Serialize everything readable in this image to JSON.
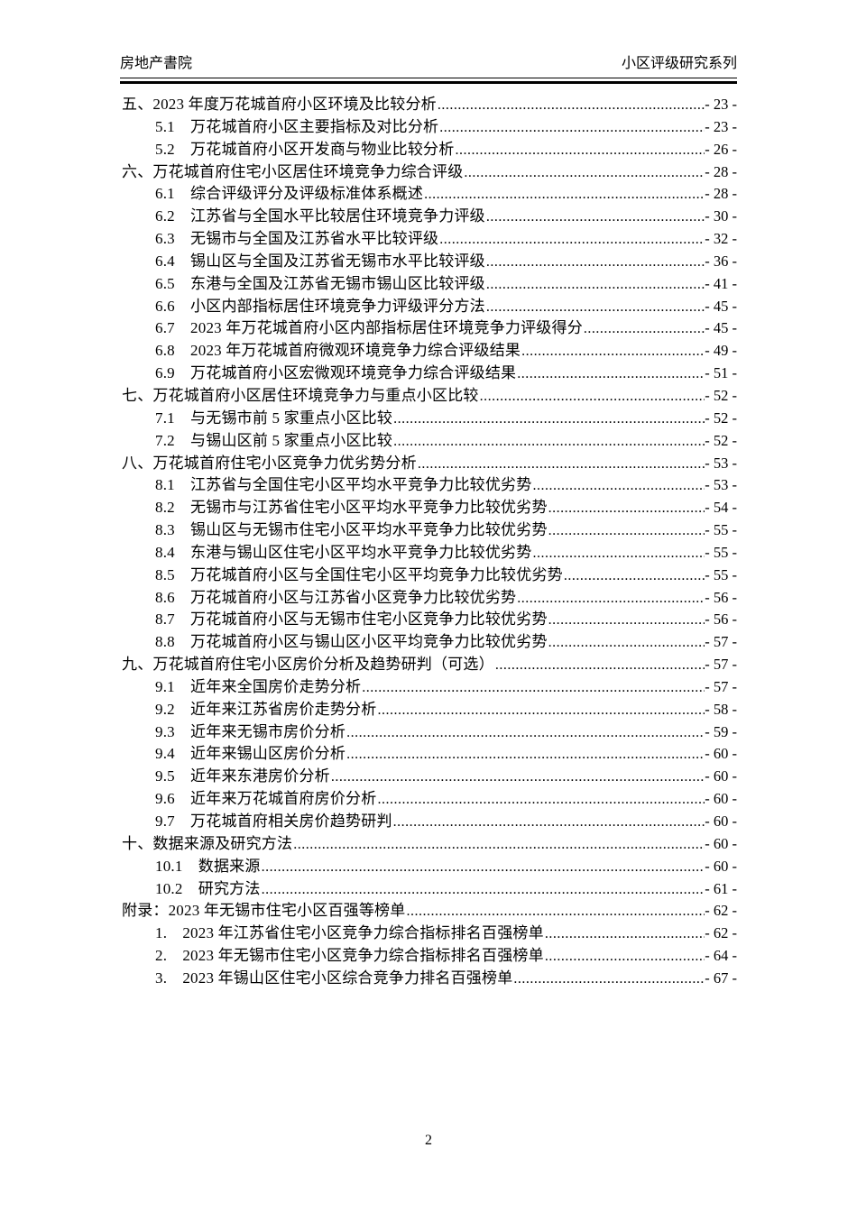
{
  "header": {
    "left": "房地产書院",
    "right": "小区评级研究系列"
  },
  "toc_entries": [
    {
      "level": 1,
      "label": "五、2023 年度万花城首府小区环境及比较分析",
      "page": "- 23 -"
    },
    {
      "level": 2,
      "label": "5.1　万花城首府小区主要指标及对比分析",
      "page": "- 23 -"
    },
    {
      "level": 2,
      "label": "5.2　万花城首府小区开发商与物业比较分析",
      "page": "- 26 -"
    },
    {
      "level": 1,
      "label": "六、万花城首府住宅小区居住环境竞争力综合评级",
      "page": "- 28 -"
    },
    {
      "level": 2,
      "label": "6.1　综合评级评分及评级标准体系概述",
      "page": "- 28 -"
    },
    {
      "level": 2,
      "label": "6.2　江苏省与全国水平比较居住环境竞争力评级",
      "page": "- 30 -"
    },
    {
      "level": 2,
      "label": "6.3　无锡市与全国及江苏省水平比较评级",
      "page": "- 32 -"
    },
    {
      "level": 2,
      "label": "6.4　锡山区与全国及江苏省无锡市水平比较评级",
      "page": "- 36 -"
    },
    {
      "level": 2,
      "label": "6.5　东港与全国及江苏省无锡市锡山区比较评级",
      "page": "- 41 -"
    },
    {
      "level": 2,
      "label": "6.6　小区内部指标居住环境竞争力评级评分方法",
      "page": "- 45 -"
    },
    {
      "level": 2,
      "label": "6.7　2023 年万花城首府小区内部指标居住环境竞争力评级得分",
      "page": "- 45 -"
    },
    {
      "level": 2,
      "label": "6.8　2023 年万花城首府微观环境竞争力综合评级结果",
      "page": "- 49 -"
    },
    {
      "level": 2,
      "label": "6.9　万花城首府小区宏微观环境竞争力综合评级结果",
      "page": "- 51 -"
    },
    {
      "level": 1,
      "label": "七、万花城首府小区居住环境竞争力与重点小区比较",
      "page": "- 52 -"
    },
    {
      "level": 2,
      "label": "7.1　与无锡市前 5 家重点小区比较",
      "page": "- 52 -"
    },
    {
      "level": 2,
      "label": "7.2　与锡山区前 5 家重点小区比较",
      "page": "- 52 -"
    },
    {
      "level": 1,
      "label": "八、万花城首府住宅小区竞争力优劣势分析",
      "page": "- 53 -"
    },
    {
      "level": 2,
      "label": "8.1　江苏省与全国住宅小区平均水平竞争力比较优劣势",
      "page": "- 53 -"
    },
    {
      "level": 2,
      "label": "8.2　无锡市与江苏省住宅小区平均水平竞争力比较优劣势",
      "page": "- 54 -"
    },
    {
      "level": 2,
      "label": "8.3　锡山区与无锡市住宅小区平均水平竞争力比较优劣势",
      "page": "- 55 -"
    },
    {
      "level": 2,
      "label": "8.4　东港与锡山区住宅小区平均水平竞争力比较优劣势",
      "page": "- 55 -"
    },
    {
      "level": 2,
      "label": "8.5　万花城首府小区与全国住宅小区平均竞争力比较优劣势",
      "page": "- 55 -"
    },
    {
      "level": 2,
      "label": "8.6　万花城首府小区与江苏省小区竞争力比较优劣势",
      "page": "- 56 -"
    },
    {
      "level": 2,
      "label": "8.7　万花城首府小区与无锡市住宅小区竞争力比较优劣势",
      "page": "- 56 -"
    },
    {
      "level": 2,
      "label": "8.8　万花城首府小区与锡山区小区平均竞争力比较优劣势",
      "page": "- 57 -"
    },
    {
      "level": 1,
      "label": "九、万花城首府住宅小区房价分析及趋势研判（可选）",
      "page": "- 57 -"
    },
    {
      "level": 2,
      "label": "9.1　近年来全国房价走势分析",
      "page": "- 57 -"
    },
    {
      "level": 2,
      "label": "9.2　近年来江苏省房价走势分析",
      "page": "- 58 -"
    },
    {
      "level": 2,
      "label": "9.3　近年来无锡市房价分析",
      "page": "- 59 -"
    },
    {
      "level": 2,
      "label": "9.4　近年来锡山区房价分析",
      "page": "- 60 -"
    },
    {
      "level": 2,
      "label": "9.5　近年来东港房价分析",
      "page": "- 60 -"
    },
    {
      "level": 2,
      "label": "9.6　近年来万花城首府房价分析",
      "page": "- 60 -"
    },
    {
      "level": 2,
      "label": "9.7　万花城首府相关房价趋势研判",
      "page": "- 60 -"
    },
    {
      "level": 1,
      "label": "十、数据来源及研究方法",
      "page": "- 60 -"
    },
    {
      "level": 2,
      "label": "10.1　数据来源",
      "page": "- 60 -"
    },
    {
      "level": 2,
      "label": "10.2　研究方法",
      "page": "- 61 -"
    },
    {
      "level": 1,
      "label": "附录：2023 年无锡市住宅小区百强等榜单",
      "page": "- 62 -"
    },
    {
      "level": 2,
      "label": "1.　2023 年江苏省住宅小区竞争力综合指标排名百强榜单",
      "page": "- 62 -"
    },
    {
      "level": 2,
      "label": "2.　2023 年无锡市住宅小区竞争力综合指标排名百强榜单",
      "page": "- 64 -"
    },
    {
      "level": 2,
      "label": "3.　2023 年锡山区住宅小区综合竞争力排名百强榜单",
      "page": "- 67 -"
    }
  ],
  "footer": {
    "page_number": "2"
  }
}
